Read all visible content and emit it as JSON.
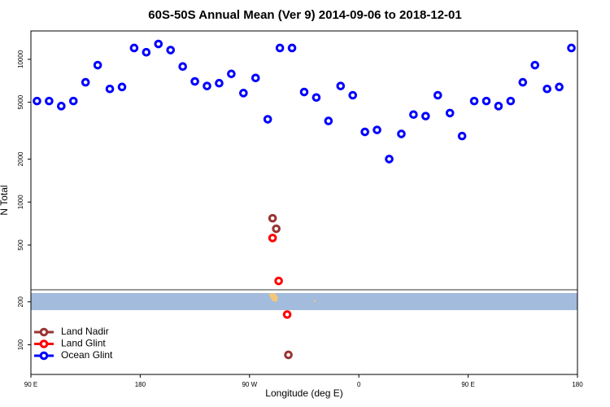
{
  "chart_data": {
    "type": "scatter",
    "title": "60S-50S Annual Mean (Ver 9)   2014-09-06 to 2018-12-01",
    "x_label": "Longitude (deg E)",
    "y_label": "N Total",
    "xlim": [
      90,
      540
    ],
    "ylim": [
      62,
      15800
    ],
    "log_y": true,
    "legend": "bottom-left",
    "xticks": [
      {
        "value": 90,
        "label": "90 E"
      },
      {
        "value": 180,
        "label": "180"
      },
      {
        "value": 270,
        "label": "90 W"
      },
      {
        "value": 360,
        "label": "0"
      },
      {
        "value": 450,
        "label": "90 E"
      },
      {
        "value": 540,
        "label": "180"
      }
    ],
    "yticks": [
      100,
      200,
      500,
      1000,
      2000,
      5000,
      10000
    ],
    "series": [
      {
        "name": "Land Nadir",
        "color": "#993333",
        "x": [
          289,
          292,
          302
        ],
        "values": [
          770,
          650,
          85
        ]
      },
      {
        "name": "Land Glint",
        "color": "#ff0000",
        "x": [
          289,
          294,
          301
        ],
        "values": [
          560,
          280,
          163
        ]
      },
      {
        "name": "Ocean Glint",
        "color": "#0000ff",
        "x": [
          95,
          105,
          115,
          125,
          135,
          145,
          155,
          165,
          175,
          185,
          195,
          205,
          215,
          225,
          235,
          245,
          255,
          265,
          275,
          285,
          295,
          305,
          315,
          325,
          335,
          345,
          355,
          365,
          375,
          385,
          395,
          405,
          415,
          425,
          435,
          445,
          455,
          465,
          475,
          485,
          495,
          505,
          515,
          525,
          535
        ],
        "values": [
          5100,
          5100,
          4700,
          5100,
          6900,
          9100,
          6200,
          6400,
          12000,
          11200,
          12800,
          11600,
          8900,
          7000,
          6500,
          6800,
          7900,
          5800,
          7400,
          3800,
          12000,
          12000,
          5900,
          5400,
          3700,
          6500,
          5600,
          3100,
          3200,
          2000,
          3000,
          4100,
          4000,
          5600,
          4200,
          2900,
          5100,
          5100,
          4700,
          5100,
          6900,
          9100,
          6200,
          6400,
          12000
        ]
      }
    ]
  }
}
